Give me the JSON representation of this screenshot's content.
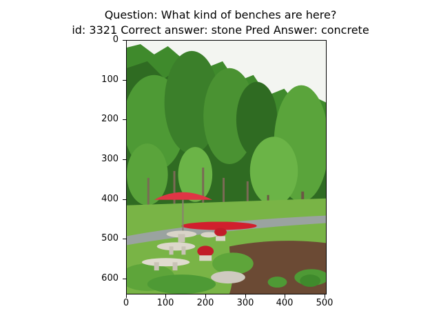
{
  "figure": {
    "title_line_1": "Question: What kind of benches are here?",
    "title_line_2": "id: 3321 Correct answer: stone Pred Answer: concrete"
  },
  "axes": {
    "y_ticks": [
      "0",
      "100",
      "200",
      "300",
      "400",
      "500",
      "600"
    ],
    "x_ticks": [
      "0",
      "100",
      "200",
      "300",
      "400",
      "500"
    ]
  },
  "image": {
    "description_icon": "park-photo-icon",
    "colors": {
      "sky": "#f2f4ef",
      "foliage_dark": "#2f6b22",
      "foliage_mid": "#4e9a35",
      "foliage_light": "#7fbf4f",
      "lawn": "#6fae3c",
      "path": "#9aa3a0",
      "umbrella": "#e03545",
      "flowers": "#d11f2d",
      "stone": "#d9d4c8",
      "mulch": "#6b4a34"
    }
  }
}
